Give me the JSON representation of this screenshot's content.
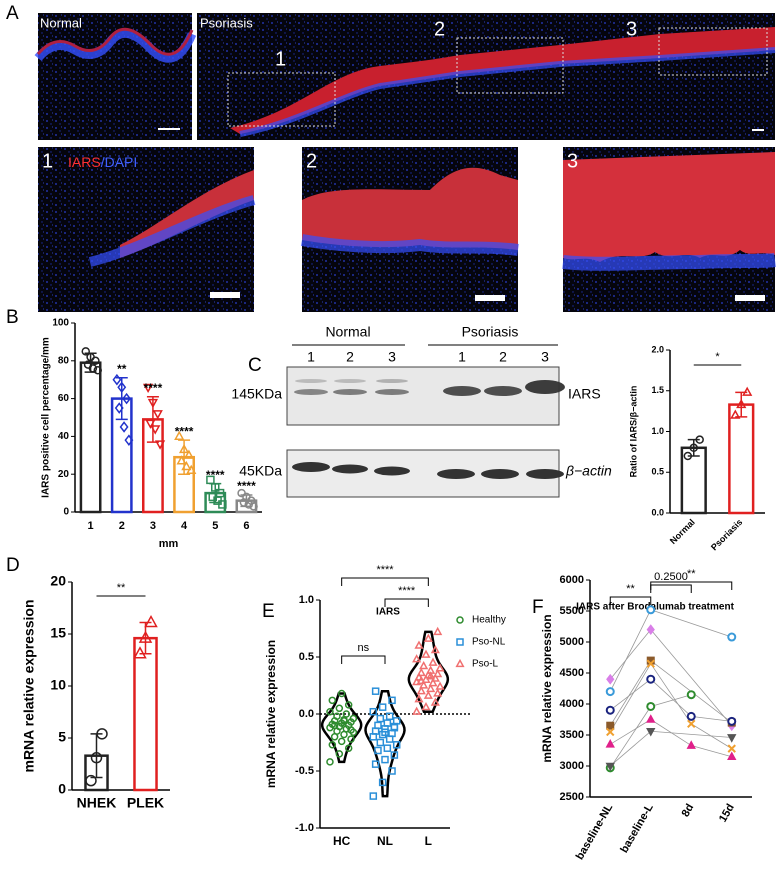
{
  "figure": {
    "panels": [
      "A",
      "B",
      "C",
      "D",
      "E",
      "F"
    ],
    "micrographs": {
      "normal": "Normal",
      "psoriasis": "Psoriasis",
      "regions": [
        "1",
        "2",
        "3"
      ],
      "zooms": [
        "1",
        "2",
        "3"
      ],
      "stain_iars": "IARS",
      "stain_dapi": "/DAPI"
    },
    "blot": {
      "groups": [
        "Normal",
        "Psoriasis"
      ],
      "lanes": [
        "1",
        "2",
        "3",
        "1",
        "2",
        "3"
      ],
      "sizes": [
        "145KDa",
        "45KDa"
      ],
      "targets": [
        "IARS",
        "β−actin"
      ]
    }
  },
  "chart_data": [
    {
      "type": "bar",
      "ylabel": "IARS positive cell percentage/mm",
      "xlabel": "mm",
      "categories": [
        "1",
        "2",
        "3",
        "4",
        "5",
        "6"
      ],
      "values": [
        79,
        60,
        49,
        29,
        10,
        6
      ],
      "errors": [
        5,
        11,
        12,
        9,
        5,
        3
      ],
      "colors": [
        "#222222",
        "#2233cc",
        "#e02020",
        "#f0a030",
        "#2e8b57",
        "#888888"
      ],
      "markers": [
        "circle",
        "diamond",
        "triangle-down",
        "triangle-up",
        "square",
        "circle"
      ],
      "points": [
        [
          85,
          82,
          80,
          78,
          76,
          75
        ],
        [
          70,
          66,
          60,
          55,
          45,
          38
        ],
        [
          66,
          58,
          52,
          47,
          44,
          36
        ],
        [
          40,
          33,
          30,
          27,
          24,
          22
        ],
        [
          17,
          13,
          10,
          8,
          6,
          4
        ],
        [
          10,
          8,
          6,
          5,
          4,
          3
        ]
      ],
      "significance": [
        null,
        "**",
        "****",
        "****",
        "****",
        "****"
      ],
      "ylim": [
        0,
        100
      ],
      "yticks": [
        0,
        20,
        40,
        60,
        80,
        100
      ]
    },
    {
      "type": "bar",
      "ylabel": "Ratio of IARS/β−actin",
      "categories": [
        "Normal",
        "Psoriasis"
      ],
      "values": [
        0.8,
        1.33
      ],
      "errors": [
        0.1,
        0.15
      ],
      "colors": [
        "#222222",
        "#e02020"
      ],
      "markers": [
        "circle",
        "triangle-up"
      ],
      "points": [
        [
          0.7,
          0.8,
          0.9
        ],
        [
          1.2,
          1.33,
          1.48
        ]
      ],
      "bracket_label": "*",
      "ylim": [
        0,
        2
      ],
      "yticks": [
        {
          "value": 0,
          "label": "0.0"
        },
        0.5,
        {
          "value": 1,
          "label": "1.0"
        },
        1.5,
        {
          "value": 2,
          "label": "2.0"
        }
      ]
    },
    {
      "type": "bar",
      "ylabel": "mRNA relative  expression",
      "categories": [
        "NHEK",
        "PLEK"
      ],
      "values": [
        3.3,
        14.6
      ],
      "errors": [
        2.1,
        1.5
      ],
      "colors": [
        "#222222",
        "#e02020"
      ],
      "markers": [
        "circle",
        "triangle-up"
      ],
      "points": [
        [
          0.9,
          3.1,
          5.4
        ],
        [
          13.1,
          14.6,
          16.1
        ]
      ],
      "bracket_label": "**",
      "ylim": [
        0,
        20
      ],
      "yticks": [
        0,
        5,
        10,
        15,
        20
      ]
    },
    {
      "type": "violin",
      "title": "IARS",
      "ylabel": "mRNA relative expression",
      "categories": [
        "HC",
        "NL",
        "L"
      ],
      "series": [
        {
          "name": "Healthy",
          "color": "#2e8b2e",
          "marker": "circle",
          "values": [
            -0.42,
            -0.35,
            -0.3,
            -0.27,
            -0.24,
            -0.22,
            -0.2,
            -0.18,
            -0.16,
            -0.15,
            -0.13,
            -0.12,
            -0.11,
            -0.1,
            -0.09,
            -0.08,
            -0.07,
            -0.06,
            -0.05,
            -0.04,
            -0.02,
            0,
            0.02,
            0.05,
            0.08,
            0.12,
            0.18,
            -0.14,
            -0.1,
            -0.06
          ]
        },
        {
          "name": "Pso-NL",
          "color": "#2a8fd8",
          "marker": "square",
          "values": [
            -0.72,
            -0.6,
            -0.5,
            -0.44,
            -0.4,
            -0.36,
            -0.32,
            -0.3,
            -0.27,
            -0.25,
            -0.22,
            -0.2,
            -0.18,
            -0.17,
            -0.15,
            -0.13,
            -0.12,
            -0.1,
            -0.08,
            -0.06,
            -0.04,
            -0.02,
            0.02,
            0.06,
            0.12,
            0.2,
            -0.16,
            -0.11
          ]
        },
        {
          "name": "Pso-L",
          "color": "#f07070",
          "marker": "triangle-up",
          "values": [
            0.02,
            0.06,
            0.1,
            0.13,
            0.16,
            0.18,
            0.2,
            0.22,
            0.24,
            0.25,
            0.27,
            0.28,
            0.3,
            0.31,
            0.32,
            0.34,
            0.35,
            0.36,
            0.38,
            0.4,
            0.42,
            0.45,
            0.48,
            0.52,
            0.56,
            0.6,
            0.66,
            0.72,
            0.29,
            0.33
          ]
        }
      ],
      "reference_line": 0,
      "brackets": [
        {
          "label": "ns",
          "between": [
            "HC",
            "NL"
          ]
        },
        {
          "label": "****",
          "between": [
            "NL",
            "L"
          ]
        },
        {
          "label": "****",
          "between": [
            "HC",
            "L"
          ]
        }
      ],
      "ylim": [
        -1,
        1
      ],
      "yticks": [
        {
          "value": -1,
          "label": "-1.0"
        },
        -0.5,
        {
          "value": 0,
          "label": "0.0"
        },
        0.5,
        {
          "value": 1,
          "label": "1.0"
        }
      ]
    },
    {
      "type": "line",
      "title": "IARS after Brodalumab treatment",
      "ylabel": "mRNA relative expression",
      "categories": [
        "baseline-NL",
        "baseline-L",
        "8d",
        "15d"
      ],
      "series": [
        {
          "color": "#3a9ad9",
          "marker": "circle",
          "x": [
            "baseline-NL",
            "baseline-L",
            "15d"
          ],
          "values": [
            4200,
            5520,
            5080
          ]
        },
        {
          "color": "#d97fe8",
          "marker": "diamond",
          "x": [
            "baseline-NL",
            "baseline-L",
            "15d"
          ],
          "values": [
            4400,
            5200,
            3650
          ]
        },
        {
          "color": "#8b5a2b",
          "marker": "square",
          "x": [
            "baseline-NL",
            "baseline-L",
            "15d"
          ],
          "values": [
            3650,
            4700,
            3700
          ]
        },
        {
          "color": "#1a237e",
          "marker": "circle",
          "x": [
            "baseline-NL",
            "baseline-L",
            "8d",
            "15d"
          ],
          "values": [
            3900,
            4400,
            3800,
            3720
          ]
        },
        {
          "color": "#2e8b2e",
          "marker": "circle",
          "x": [
            "baseline-NL",
            "baseline-L",
            "8d"
          ],
          "values": [
            2970,
            3960,
            4150
          ]
        },
        {
          "color": "#f0a030",
          "marker": "x",
          "x": [
            "baseline-NL",
            "baseline-L",
            "8d",
            "15d"
          ],
          "values": [
            3550,
            4650,
            3680,
            3280
          ]
        },
        {
          "color": "#e0208a",
          "marker": "triangle-up",
          "x": [
            "baseline-NL",
            "baseline-L",
            "8d",
            "15d"
          ],
          "values": [
            3350,
            3750,
            3330,
            3150
          ]
        },
        {
          "color": "#555555",
          "marker": "triangle-down",
          "x": [
            "baseline-NL",
            "baseline-L",
            "15d"
          ],
          "values": [
            3000,
            3560,
            3460
          ]
        }
      ],
      "brackets": [
        {
          "label": "**",
          "between": [
            "baseline-NL",
            "baseline-L"
          ]
        },
        {
          "label": "0.2500",
          "between": [
            "baseline-L",
            "8d"
          ]
        },
        {
          "label": "**",
          "between": [
            "baseline-L",
            "15d"
          ]
        }
      ],
      "ylim": [
        2500,
        6000
      ],
      "yticks": [
        2500,
        3000,
        3500,
        4000,
        4500,
        5000,
        5500,
        6000
      ]
    }
  ]
}
